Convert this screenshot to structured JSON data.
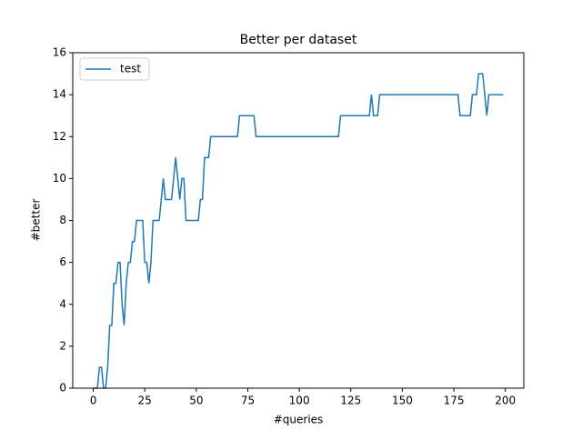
{
  "chart_data": {
    "type": "line",
    "title": "Better per dataset",
    "x_label": "#queries",
    "y_label": "#better",
    "x": [
      0,
      2,
      3,
      4,
      5,
      6,
      7,
      8,
      9,
      10,
      11,
      12,
      13,
      14,
      15,
      16,
      17,
      18,
      19,
      20,
      21,
      24,
      25,
      26,
      27,
      28,
      29,
      32,
      33,
      34,
      35,
      38,
      39,
      40,
      41,
      42,
      43,
      44,
      45,
      51,
      52,
      53,
      54,
      56,
      57,
      70,
      71,
      78,
      79,
      119,
      120,
      134,
      135,
      136,
      138,
      139,
      177,
      178,
      183,
      184,
      186,
      187,
      189,
      190,
      191,
      192,
      199
    ],
    "series": [
      {
        "name": "test",
        "color": "#1f77b4",
        "values": [
          0,
          0,
          1,
          1,
          0,
          0,
          1,
          3,
          3,
          5,
          5,
          6,
          6,
          4,
          3,
          5,
          6,
          6,
          7,
          7,
          8,
          8,
          6,
          6,
          5,
          6,
          8,
          8,
          9,
          10,
          9,
          9,
          10,
          11,
          10,
          9,
          10,
          10,
          8,
          8,
          9,
          9,
          11,
          11,
          12,
          12,
          13,
          13,
          12,
          12,
          13,
          13,
          14,
          13,
          13,
          14,
          14,
          13,
          13,
          14,
          14,
          15,
          15,
          14,
          13,
          14,
          14
        ]
      }
    ],
    "xlim": [
      -9.95,
      208.95
    ],
    "xticks": [
      0,
      25,
      50,
      75,
      100,
      125,
      150,
      175,
      200
    ],
    "ylim": [
      0,
      16
    ],
    "yticks": [
      0,
      2,
      4,
      6,
      8,
      10,
      12,
      14,
      16
    ],
    "legend": "upper left",
    "grid": false
  }
}
